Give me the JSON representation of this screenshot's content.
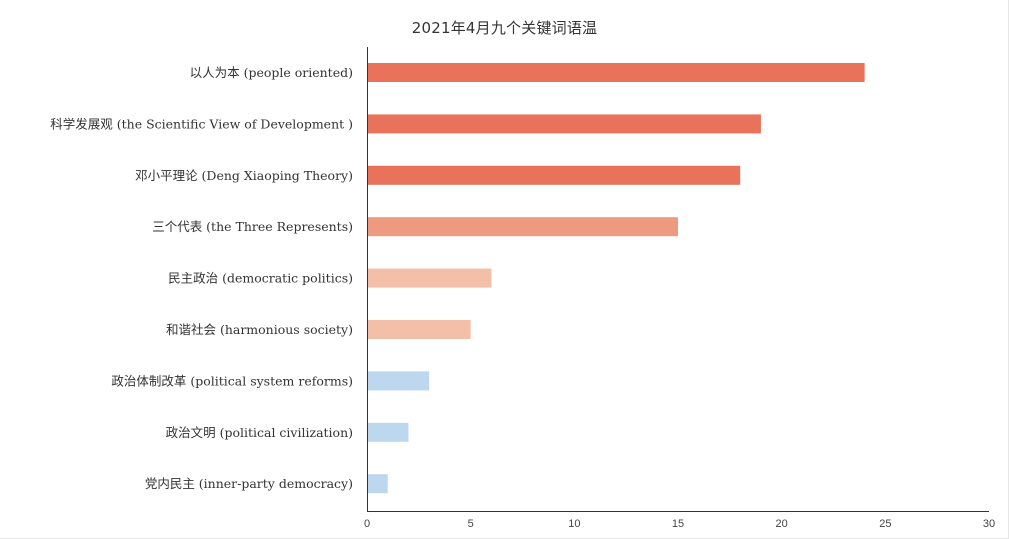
{
  "chart_data": {
    "type": "bar",
    "orientation": "horizontal",
    "title": "2021年4月九个关键词语温",
    "xlabel": "",
    "ylabel": "",
    "xlim": [
      0,
      30
    ],
    "xticks": [
      0,
      5,
      10,
      15,
      20,
      25,
      30
    ],
    "grid": false,
    "legend": "none",
    "categories": [
      "以人为本 (people oriented)",
      "科学发展观 (the Scientific View of Development )",
      "邓小平理论 (Deng Xiaoping Theory)",
      "三个代表 (the Three Represents)",
      "民主政治 (democratic politics)",
      "和谐社会 (harmonious society)",
      "政治体制改革 (political system reforms)",
      "政治文明 (political civilization)",
      "党内民主 (inner-party democracy)"
    ],
    "values": [
      24,
      19,
      18,
      15,
      6,
      5,
      3,
      2,
      1
    ],
    "bar_colors": [
      "#e8735a",
      "#e8735a",
      "#e8735a",
      "#ee9a7f",
      "#f3bfa8",
      "#f3bfa8",
      "#bdd7ee",
      "#bdd7ee",
      "#bdd7ee"
    ],
    "axis_color": "#333333"
  }
}
